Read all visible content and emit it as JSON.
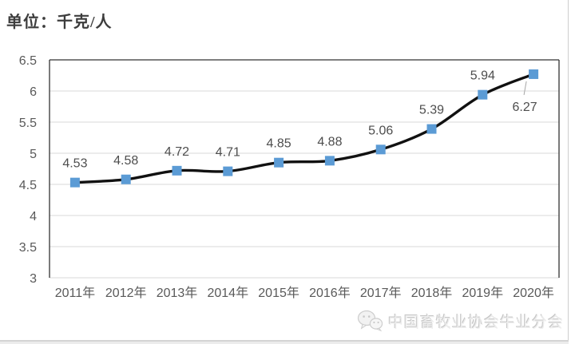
{
  "unit_label": "单位：千克/人",
  "chart_data": {
    "type": "line",
    "title": "单位：千克/人",
    "categories": [
      "2011年",
      "2012年",
      "2013年",
      "2014年",
      "2015年",
      "2016年",
      "2017年",
      "2018年",
      "2019年",
      "2020年"
    ],
    "values": [
      4.53,
      4.58,
      4.72,
      4.71,
      4.85,
      4.88,
      5.06,
      5.39,
      5.94,
      6.27
    ],
    "data_labels": [
      "4.53",
      "4.58",
      "4.72",
      "4.71",
      "4.85",
      "4.88",
      "5.06",
      "5.39",
      "5.94",
      "6.27"
    ],
    "yticks": [
      "3",
      "3.5",
      "4",
      "4.5",
      "5",
      "5.5",
      "6",
      "6.5"
    ],
    "ylim": [
      3,
      6.5
    ],
    "ytick_step": 0.5,
    "grid": true,
    "smooth": true,
    "marker": "square",
    "legend": "none",
    "last_label_position": "below-left-with-leader"
  },
  "watermark": {
    "icon": "wechat-icon",
    "text": "中国畜牧业协会牛业分会"
  },
  "colors": {
    "line": "#111111",
    "marker": "#5B9BD5",
    "grid": "#d9d9d9",
    "border_dark": "#333333",
    "axis_text": "#595959",
    "label_text": "#4d4d4d",
    "leader_line": "#a6a6a6",
    "watermark_text": "#ededed"
  }
}
